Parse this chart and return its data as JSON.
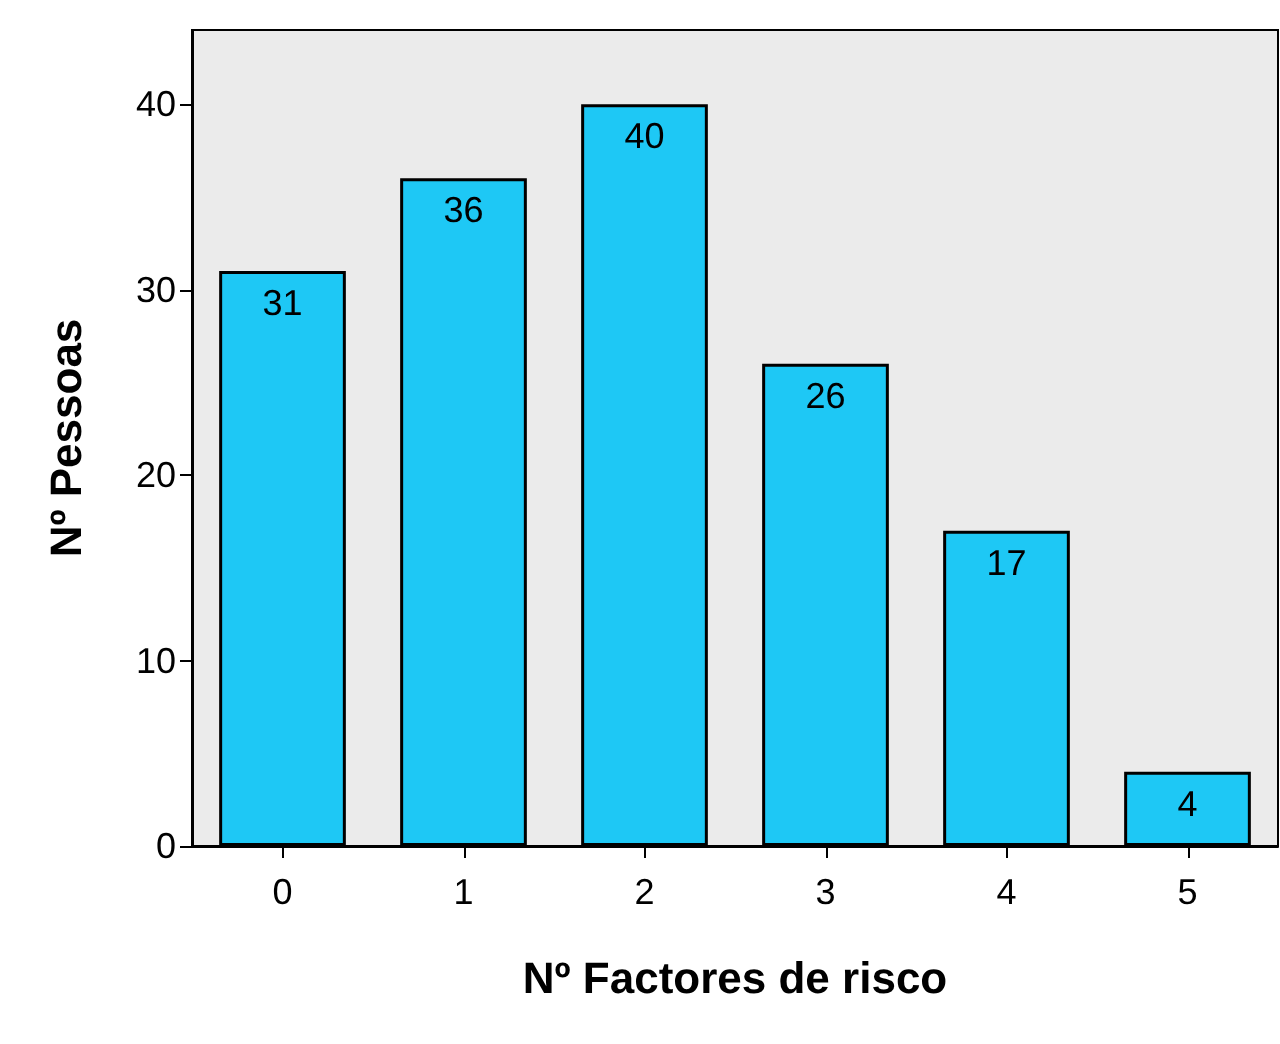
{
  "chart_data": {
    "type": "bar",
    "xlabel": "Nº Factores de risco",
    "ylabel": "Nº Pessoas",
    "categories": [
      "0",
      "1",
      "2",
      "3",
      "4",
      "5"
    ],
    "values": [
      31,
      36,
      40,
      26,
      17,
      4
    ],
    "color": "#1ec8f5",
    "ylim": [
      0,
      44
    ],
    "yticks": [
      0,
      10,
      20,
      30,
      40
    ],
    "data_labels": true,
    "grid": false
  }
}
